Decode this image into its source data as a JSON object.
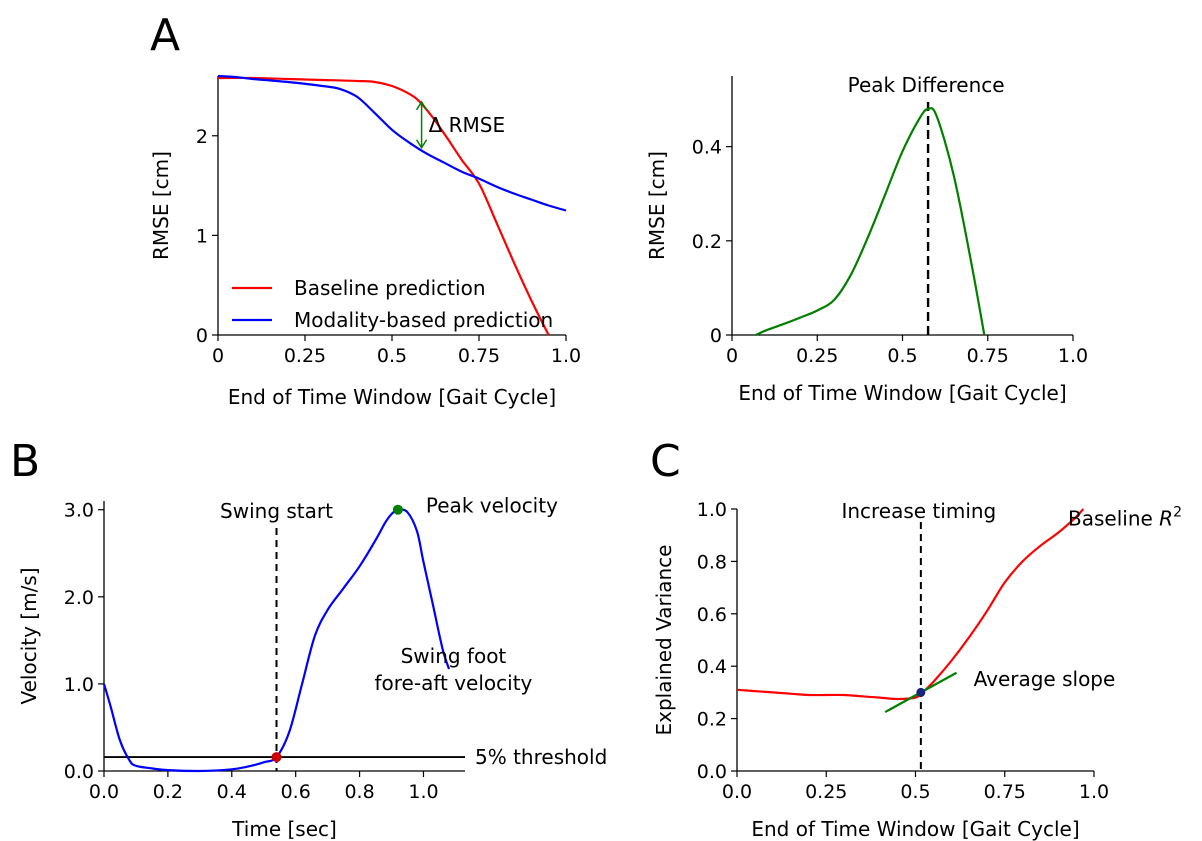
{
  "panel_letters": {
    "a": "A",
    "b": "B",
    "c": "C"
  },
  "chart_data": [
    {
      "id": "a1",
      "type": "line",
      "title": "",
      "xlabel": "End of Time Window [Gait Cycle]",
      "ylabel": "RMSE [cm]",
      "xlim": [
        0,
        1.0
      ],
      "ylim": [
        0,
        2.6
      ],
      "xticks": [
        0,
        0.25,
        0.5,
        0.75,
        1.0
      ],
      "xtick_labels": [
        "0",
        "0.25",
        "0.5",
        "0.75",
        "1.0"
      ],
      "yticks": [
        0,
        1,
        2
      ],
      "ytick_labels": [
        "0",
        "1",
        "2"
      ],
      "legend_position": "lower-left",
      "series": [
        {
          "name": "Baseline prediction",
          "color": "#ff0000",
          "x": [
            0,
            0.1,
            0.2,
            0.3,
            0.4,
            0.45,
            0.5,
            0.55,
            0.58,
            0.62,
            0.66,
            0.7,
            0.75,
            0.8,
            0.85,
            0.9,
            0.95
          ],
          "y": [
            2.58,
            2.58,
            2.57,
            2.56,
            2.55,
            2.54,
            2.5,
            2.42,
            2.34,
            2.17,
            1.97,
            1.76,
            1.52,
            1.13,
            0.73,
            0.35,
            0.0
          ]
        },
        {
          "name": "Modality-based prediction",
          "color": "#0000ff",
          "x": [
            0,
            0.05,
            0.1,
            0.2,
            0.3,
            0.35,
            0.4,
            0.45,
            0.5,
            0.55,
            0.6,
            0.65,
            0.7,
            0.75,
            0.8,
            0.85,
            0.9,
            0.95,
            1.0
          ],
          "y": [
            2.6,
            2.59,
            2.57,
            2.54,
            2.5,
            2.47,
            2.39,
            2.23,
            2.06,
            1.93,
            1.82,
            1.73,
            1.64,
            1.57,
            1.49,
            1.42,
            1.36,
            1.3,
            1.25
          ]
        }
      ],
      "annotations": [
        {
          "text": "Δ RMSE",
          "arrow_x": 0.585,
          "arrow_y_from": 2.34,
          "arrow_y_to": 1.88,
          "color": "#008000"
        }
      ]
    },
    {
      "id": "a2",
      "type": "line",
      "title": "",
      "xlabel": "End of Time Window [Gait Cycle]",
      "ylabel": "RMSE [cm]",
      "xlim": [
        0,
        1.0
      ],
      "ylim": [
        0,
        0.55
      ],
      "xticks": [
        0,
        0.25,
        0.5,
        0.75,
        1.0
      ],
      "xtick_labels": [
        "0",
        "0.25",
        "0.5",
        "0.75",
        "1.0"
      ],
      "yticks": [
        0,
        0.2,
        0.4
      ],
      "ytick_labels": [
        "0",
        "0.2",
        "0.4"
      ],
      "series": [
        {
          "color": "#008000",
          "x": [
            0.07,
            0.1,
            0.15,
            0.2,
            0.25,
            0.3,
            0.35,
            0.4,
            0.45,
            0.5,
            0.55,
            0.575,
            0.6,
            0.65,
            0.7,
            0.74
          ],
          "y": [
            0.0,
            0.01,
            0.023,
            0.037,
            0.052,
            0.075,
            0.13,
            0.21,
            0.3,
            0.39,
            0.46,
            0.48,
            0.465,
            0.34,
            0.16,
            0.0
          ]
        }
      ],
      "vlines": [
        {
          "x": 0.575,
          "label": "Peak Difference",
          "style": "dashed",
          "color": "#000000"
        }
      ]
    },
    {
      "id": "b",
      "type": "line",
      "title": "",
      "xlabel": "Time [sec]",
      "ylabel": "Velocity [m/s]",
      "xlim": [
        0,
        1.13
      ],
      "ylim": [
        0,
        3.1
      ],
      "xticks": [
        0.0,
        0.2,
        0.4,
        0.6,
        0.8,
        1.0
      ],
      "xtick_labels": [
        "0.0",
        "0.2",
        "0.4",
        "0.6",
        "0.8",
        "1.0"
      ],
      "yticks": [
        0,
        1,
        2,
        3
      ],
      "ytick_labels": [
        "0.0",
        "1.0",
        "2.0",
        "3.0"
      ],
      "series": [
        {
          "name": "Swing foot fore-aft velocity",
          "color": "#0000ff",
          "x": [
            0,
            0.02,
            0.05,
            0.08,
            0.1,
            0.15,
            0.2,
            0.3,
            0.4,
            0.45,
            0.5,
            0.54,
            0.58,
            0.62,
            0.66,
            0.7,
            0.75,
            0.8,
            0.85,
            0.88,
            0.9,
            0.92,
            0.95,
            0.98,
            1.0,
            1.03,
            1.06,
            1.08
          ],
          "y": [
            1.0,
            0.75,
            0.35,
            0.12,
            0.06,
            0.03,
            0.01,
            0.0,
            0.02,
            0.05,
            0.1,
            0.16,
            0.45,
            1.0,
            1.55,
            1.85,
            2.1,
            2.35,
            2.65,
            2.85,
            2.95,
            3.0,
            2.97,
            2.75,
            2.4,
            1.9,
            1.4,
            1.17
          ]
        }
      ],
      "hlines": [
        {
          "y": 0.16,
          "label": "5% threshold",
          "color": "#000000"
        }
      ],
      "vlines": [
        {
          "x": 0.54,
          "label": "Swing start",
          "style": "dashed",
          "color": "#000000"
        }
      ],
      "markers": [
        {
          "x": 0.54,
          "y": 0.16,
          "color": "#cc0000"
        },
        {
          "x": 0.92,
          "y": 3.0,
          "color": "#008000",
          "label": "Peak velocity"
        }
      ],
      "annotations": [
        {
          "text": "Swing foot",
          "x": 1.05,
          "y": 1.24
        },
        {
          "text": "fore-aft velocity",
          "x": 1.05,
          "y": 0.93
        }
      ]
    },
    {
      "id": "c",
      "type": "line",
      "title": "",
      "xlabel": "End of Time Window [Gait Cycle]",
      "ylabel": "Explained Variance",
      "xlim": [
        0,
        1.0
      ],
      "ylim": [
        0,
        1.0
      ],
      "xticks": [
        0,
        0.25,
        0.5,
        0.75,
        1.0
      ],
      "xtick_labels": [
        "0.0",
        "0.25",
        "0.5",
        "0.75",
        "1.0"
      ],
      "yticks": [
        0,
        0.2,
        0.4,
        0.6,
        0.8,
        1.0
      ],
      "ytick_labels": [
        "0.0",
        "0.2",
        "0.4",
        "0.6",
        "0.8",
        "1.0"
      ],
      "series": [
        {
          "name": "Baseline R²",
          "color": "#ff0000",
          "x": [
            0,
            0.05,
            0.1,
            0.15,
            0.2,
            0.25,
            0.3,
            0.35,
            0.4,
            0.45,
            0.5,
            0.52,
            0.55,
            0.6,
            0.65,
            0.7,
            0.75,
            0.8,
            0.85,
            0.9,
            0.95,
            0.97
          ],
          "y": [
            0.31,
            0.305,
            0.3,
            0.295,
            0.29,
            0.29,
            0.29,
            0.285,
            0.28,
            0.275,
            0.28,
            0.3,
            0.34,
            0.42,
            0.51,
            0.61,
            0.72,
            0.8,
            0.86,
            0.91,
            0.97,
            1.0
          ]
        },
        {
          "name": "Average slope",
          "color": "#008000",
          "x": [
            0.415,
            0.615
          ],
          "y": [
            0.225,
            0.375
          ]
        }
      ],
      "vlines": [
        {
          "x": 0.515,
          "label": "Increase timing",
          "style": "dashed",
          "color": "#000000"
        }
      ],
      "markers": [
        {
          "x": 0.515,
          "y": 0.3,
          "color": "#1a237e"
        }
      ],
      "annotations": [
        {
          "text": "Baseline R",
          "superscript": "2",
          "x": 0.95,
          "y": 0.94
        },
        {
          "text": "Average slope",
          "x": 0.66,
          "y": 0.37
        }
      ]
    }
  ]
}
